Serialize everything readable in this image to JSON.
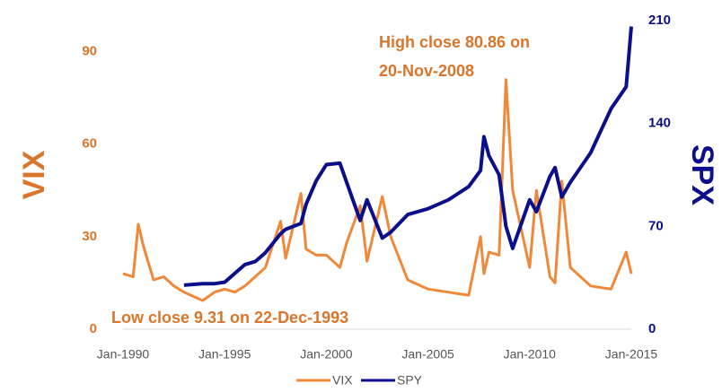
{
  "chart_data": {
    "type": "line",
    "x": [
      "Jan-1990",
      "Jul-1990",
      "Oct-1990",
      "Jan-1991",
      "Jul-1991",
      "Jan-1992",
      "Jul-1992",
      "Jan-1993",
      "Dec-1993",
      "Jul-1994",
      "Jan-1995",
      "Jul-1995",
      "Jan-1996",
      "Jul-1996",
      "Jan-1997",
      "Oct-1997",
      "Jan-1998",
      "Oct-1998",
      "Jan-1999",
      "Jul-1999",
      "Jan-2000",
      "Sep-2000",
      "Jan-2001",
      "Sep-2001",
      "Jan-2002",
      "Oct-2002",
      "Mar-2003",
      "Jan-2004",
      "Jan-2005",
      "Jan-2006",
      "Jan-2007",
      "Aug-2007",
      "Oct-2007",
      "Jan-2008",
      "Jul-2008",
      "Nov-2008",
      "Mar-2009",
      "Jan-2010",
      "May-2010",
      "Jan-2011",
      "Apr-2011",
      "Aug-2011",
      "Jan-2012",
      "Jan-2013",
      "Jan-2014",
      "Oct-2014",
      "Jan-2015"
    ],
    "series": [
      {
        "name": "VIX",
        "color": "#f0883a",
        "axis": "y",
        "values": [
          18,
          17,
          34,
          27,
          16,
          17,
          14,
          12,
          9.31,
          12,
          13,
          12,
          14,
          17,
          20,
          35,
          23,
          44,
          26,
          24,
          24,
          20,
          28,
          40,
          22,
          43,
          30,
          16,
          13,
          12,
          11,
          30,
          18,
          25,
          24,
          80.86,
          45,
          20,
          45,
          17,
          15,
          48,
          20,
          14,
          13,
          25,
          18
        ]
      },
      {
        "name": "SPY",
        "color": "#0b0f8c",
        "axis": "y2",
        "values": [
          null,
          null,
          null,
          null,
          null,
          null,
          null,
          30,
          31,
          31,
          32,
          38,
          44,
          46,
          52,
          65,
          68,
          72,
          85,
          101,
          112,
          113,
          100,
          74,
          88,
          62,
          66,
          78,
          82,
          88,
          97,
          108,
          131,
          118,
          105,
          70,
          55,
          88,
          80,
          104,
          110,
          90,
          100,
          120,
          150,
          165,
          206
        ]
      }
    ],
    "xlim": [
      "Jan-1990",
      "Jan-2015"
    ],
    "xticks": [
      "Jan-1990",
      "Jan-1995",
      "Jan-2000",
      "Jan-2005",
      "Jan-2010",
      "Jan-2015"
    ],
    "ylim": [
      0,
      100
    ],
    "yticks": [
      0,
      30,
      60,
      90
    ],
    "y2lim": [
      0,
      210
    ],
    "y2ticks": [
      0,
      70,
      140,
      210
    ],
    "ylabel": "VIX",
    "y2label": "SPX",
    "annotations": [
      {
        "lines": [
          "High close 80.86 on",
          "20-Nov-2008"
        ]
      },
      {
        "lines": [
          "Low close 9.31 on 22-Dec-1993"
        ]
      }
    ],
    "legend": "bottom",
    "grid": false
  }
}
